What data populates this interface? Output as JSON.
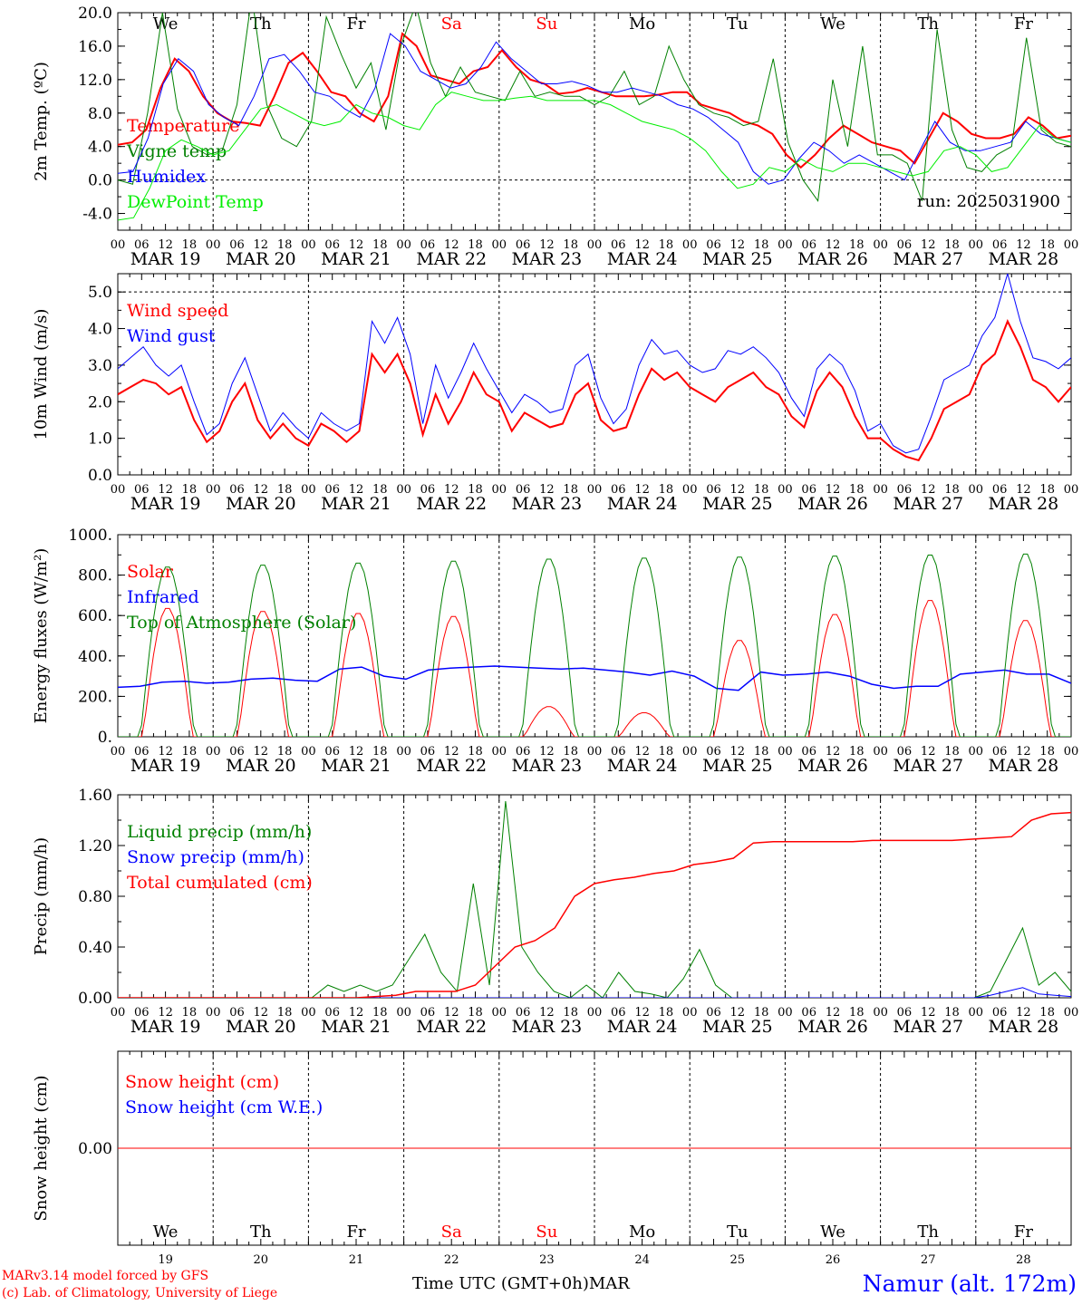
{
  "chart_data": {
    "day_labels": [
      "We",
      "Th",
      "Fr",
      "Sa",
      "Su",
      "Mo",
      "Tu",
      "We",
      "Th",
      "Fr"
    ],
    "weekend_color": "#ff0000",
    "date_labels": [
      "MAR 19",
      "MAR 20",
      "MAR 21",
      "MAR 22",
      "MAR 23",
      "MAR 24",
      "MAR 25",
      "MAR 26",
      "MAR 27",
      "MAR 28"
    ],
    "day_numbers": [
      "19",
      "20",
      "21",
      "22",
      "23",
      "24",
      "25",
      "26",
      "27",
      "28"
    ],
    "hour_labels": [
      "00",
      "06",
      "12",
      "18"
    ],
    "x_start": "2025-03-19 00 UTC",
    "x_end": "2025-03-29 00 UTC",
    "panels": [
      {
        "type": "line",
        "ylabel": "2m Temp. (ºC)",
        "ylim": [
          -6,
          20
        ],
        "ticks": [
          "-4.0",
          "0.0",
          "4.0",
          "8.0",
          "12.0",
          "16.0",
          "20.0"
        ],
        "tick_values": [
          -4,
          0,
          4,
          8,
          12,
          16,
          20
        ],
        "dashed_ref": [
          0
        ],
        "annotation": "run: 2025031900",
        "show_days": true,
        "series": [
          {
            "name": "Temperature",
            "color": "#ff0000",
            "width": 2,
            "values": [
              4.2,
              4.5,
              6,
              11,
              14.5,
              13,
              10,
              8,
              7,
              6.8,
              6.5,
              10,
              14,
              15.2,
              13,
              10.5,
              10,
              8,
              7,
              10,
              17.5,
              16,
              12.5,
              12,
              11.5,
              13,
              13.5,
              15.5,
              13.5,
              12,
              11.5,
              10.3,
              10.5,
              11,
              10.5,
              10,
              10,
              10,
              10.2,
              10.5,
              10.5,
              9,
              8.5,
              8,
              7,
              6.5,
              5.5,
              3,
              1.5,
              3,
              5,
              6.5,
              5.5,
              4.5,
              4,
              3.5,
              2,
              5,
              8,
              7,
              5.5,
              5,
              5,
              5.5,
              7.5,
              6.5,
              5,
              5.3
            ]
          },
          {
            "name": "Vigne temp",
            "color": "#008000",
            "width": 1,
            "values": [
              0,
              -0.5,
              8,
              20,
              8.5,
              4,
              3,
              3.5,
              9,
              22,
              9,
              5,
              4,
              7,
              19.5,
              15,
              11,
              14,
              6,
              16,
              21,
              14,
              10,
              13.5,
              10.5,
              10,
              9.5,
              13,
              10,
              10.5,
              10,
              10,
              9,
              10,
              13,
              9,
              10,
              16,
              12,
              9,
              8,
              7.5,
              6.5,
              7,
              14.5,
              4.5,
              0,
              -2.5,
              12,
              4,
              16,
              3,
              3,
              2,
              -2.5,
              18,
              6,
              1.5,
              1,
              3,
              4,
              17,
              6,
              4.5,
              4
            ]
          },
          {
            "name": "Humidex",
            "color": "#0000ff",
            "width": 1,
            "values": [
              0.8,
              1,
              5,
              11.5,
              14.5,
              13,
              9,
              7.5,
              6.5,
              10,
              14.5,
              15,
              13,
              10.5,
              10,
              8.5,
              7.5,
              11,
              17.5,
              16,
              13,
              12,
              11,
              11.5,
              13.5,
              16.5,
              14.5,
              13,
              11.5,
              11.5,
              11.8,
              11.3,
              10.5,
              10.5,
              11,
              10.5,
              10,
              9,
              8.5,
              7.5,
              6,
              4.5,
              1,
              -0.5,
              0,
              2.5,
              4.5,
              3.5,
              2,
              3,
              2,
              1,
              0,
              3.5,
              7,
              4.5,
              3.5,
              3.5,
              4,
              4.5,
              7,
              5.5,
              5,
              4.5
            ]
          },
          {
            "name": "DewPoint Temp",
            "color": "#00ee00",
            "width": 1,
            "values": [
              -4.8,
              -4.5,
              -1,
              3.5,
              4.8,
              4,
              3,
              3.5,
              6,
              8.5,
              9,
              8,
              7,
              6.5,
              7,
              9,
              8,
              7.5,
              6.5,
              6,
              9,
              10.5,
              10,
              9.5,
              9.5,
              9.8,
              10,
              9.5,
              9.5,
              9.5,
              9.5,
              9,
              8,
              7,
              6.5,
              6,
              5,
              3.5,
              1,
              -1,
              -0.5,
              1.5,
              1,
              2.5,
              1.5,
              1,
              2,
              2,
              1.5,
              1,
              0.5,
              1,
              3.5,
              4,
              3,
              1,
              1.5,
              4,
              6.5,
              5,
              4.5
            ]
          }
        ]
      },
      {
        "type": "line",
        "ylabel": "10m Wind (m/s)",
        "ylim": [
          0,
          5.5
        ],
        "ticks": [
          "0.0",
          "1.0",
          "2.0",
          "3.0",
          "4.0",
          "5.0"
        ],
        "tick_values": [
          0,
          1,
          2,
          3,
          4,
          5
        ],
        "dashed_ref": [
          5
        ],
        "show_days": false,
        "series": [
          {
            "name": "Wind speed",
            "color": "#ff0000",
            "width": 2,
            "values": [
              2.2,
              2.4,
              2.6,
              2.5,
              2.2,
              2.4,
              1.5,
              0.9,
              1.2,
              2,
              2.5,
              1.5,
              1,
              1.4,
              1,
              0.8,
              1.4,
              1.2,
              0.9,
              1.2,
              3.3,
              2.8,
              3.3,
              2.5,
              1.1,
              2.2,
              1.4,
              2,
              2.8,
              2.2,
              2,
              1.2,
              1.7,
              1.5,
              1.3,
              1.4,
              2.2,
              2.5,
              1.5,
              1.2,
              1.3,
              2.2,
              2.9,
              2.6,
              2.8,
              2.4,
              2.2,
              2,
              2.4,
              2.6,
              2.8,
              2.4,
              2.2,
              1.6,
              1.3,
              2.3,
              2.8,
              2.4,
              1.6,
              1,
              1,
              0.7,
              0.5,
              0.4,
              1,
              1.8,
              2,
              2.2,
              3,
              3.3,
              4.2,
              3.5,
              2.6,
              2.4,
              2,
              2.4
            ]
          },
          {
            "name": "Wind gust",
            "color": "#0000ff",
            "width": 1,
            "values": [
              2.9,
              3.2,
              3.5,
              3,
              2.7,
              3,
              2,
              1.1,
              1.4,
              2.5,
              3.2,
              2.2,
              1.2,
              1.7,
              1.3,
              1,
              1.7,
              1.4,
              1.2,
              1.4,
              4.2,
              3.6,
              4.3,
              3.3,
              1.4,
              3,
              2.1,
              2.8,
              3.6,
              2.9,
              2.3,
              1.7,
              2.2,
              2,
              1.7,
              1.8,
              3,
              3.3,
              2.1,
              1.4,
              1.8,
              3,
              3.7,
              3.3,
              3.4,
              3,
              2.8,
              2.9,
              3.4,
              3.3,
              3.5,
              3.2,
              2.8,
              2.1,
              1.6,
              2.9,
              3.3,
              3,
              2.3,
              1.2,
              1.4,
              0.8,
              0.6,
              0.7,
              1.6,
              2.6,
              2.8,
              3,
              3.8,
              4.3,
              5.5,
              4.2,
              3.2,
              3.1,
              2.9,
              3.2
            ]
          }
        ]
      },
      {
        "type": "line",
        "ylabel": "Energy fluxes (W/m²)",
        "ylim": [
          0,
          1000
        ],
        "ticks": [
          "0.",
          "200.",
          "400.",
          "600.",
          "800.",
          "1000."
        ],
        "tick_values": [
          0,
          200,
          400,
          600,
          800,
          1000
        ],
        "dashed_ref": [],
        "show_days": false,
        "series": [
          {
            "name": "Solar",
            "color": "#ff0000",
            "width": 1,
            "peak_hour": 12.5,
            "half_width_h": 6.2,
            "daily_max": [
              640,
              625,
              615,
              600,
              150,
              120,
              480,
              610,
              680,
              580
            ],
            "values": []
          },
          {
            "name": "Infrared",
            "color": "#0000ff",
            "width": 1.5,
            "values": [
              245,
              250,
              270,
              275,
              265,
              270,
              285,
              290,
              280,
              275,
              335,
              345,
              300,
              285,
              330,
              340,
              345,
              350,
              345,
              340,
              335,
              340,
              330,
              320,
              305,
              325,
              300,
              240,
              230,
              320,
              305,
              310,
              320,
              300,
              260,
              240,
              250,
              250,
              310,
              320,
              330,
              310,
              310,
              265
            ]
          },
          {
            "name": "Top of Atmosphere (Solar)",
            "color": "#008000",
            "width": 1,
            "peak_hour": 12.5,
            "half_width_h": 6.8,
            "daily_max": [
              845,
              855,
              865,
              875,
              885,
              890,
              895,
              900,
              905,
              910
            ],
            "values": []
          }
        ]
      },
      {
        "type": "line",
        "ylabel": "Precip (mm/h)",
        "ylim": [
          0,
          1.6
        ],
        "ticks": [
          "0.00",
          "0.40",
          "0.80",
          "1.20",
          "1.60"
        ],
        "tick_values": [
          0,
          0.4,
          0.8,
          1.2,
          1.6
        ],
        "dashed_ref": [],
        "show_days": false,
        "series": [
          {
            "name": "Liquid precip (mm/h)",
            "color": "#008000",
            "width": 1,
            "values": [
              0,
              0,
              0,
              0,
              0,
              0,
              0,
              0,
              0,
              0,
              0,
              0,
              0,
              0.1,
              0.05,
              0.1,
              0.05,
              0.1,
              0.3,
              0.5,
              0.2,
              0.05,
              0.9,
              0.1,
              1.55,
              0.4,
              0.2,
              0.05,
              0,
              0.1,
              0,
              0.2,
              0.05,
              0.03,
              0,
              0.15,
              0.38,
              0.1,
              0,
              0,
              0,
              0,
              0,
              0,
              0,
              0,
              0,
              0,
              0,
              0,
              0,
              0,
              0,
              0,
              0.05,
              0.3,
              0.55,
              0.1,
              0.2,
              0.05
            ]
          },
          {
            "name": "Snow precip (mm/h)",
            "color": "#0000ff",
            "width": 1,
            "values": [
              0,
              0,
              0,
              0,
              0,
              0,
              0,
              0,
              0,
              0,
              0,
              0,
              0,
              0,
              0,
              0,
              0,
              0,
              0,
              0,
              0,
              0,
              0,
              0,
              0,
              0,
              0,
              0,
              0,
              0,
              0,
              0,
              0,
              0,
              0,
              0,
              0,
              0,
              0,
              0,
              0,
              0,
              0,
              0,
              0,
              0,
              0,
              0,
              0,
              0,
              0,
              0,
              0,
              0,
              0.02,
              0.05,
              0.08,
              0.03,
              0.02,
              0.01
            ]
          },
          {
            "name": "Total cumulated (cm)",
            "color": "#ff0000",
            "width": 1.5,
            "values": [
              0,
              0,
              0,
              0,
              0,
              0,
              0,
              0,
              0,
              0,
              0,
              0,
              0,
              0.01,
              0.02,
              0.05,
              0.05,
              0.05,
              0.1,
              0.25,
              0.4,
              0.45,
              0.55,
              0.8,
              0.9,
              0.93,
              0.95,
              0.98,
              1,
              1.05,
              1.07,
              1.1,
              1.22,
              1.23,
              1.23,
              1.23,
              1.23,
              1.23,
              1.24,
              1.24,
              1.24,
              1.24,
              1.24,
              1.25,
              1.26,
              1.27,
              1.4,
              1.45,
              1.46
            ]
          }
        ]
      },
      {
        "type": "line",
        "ylabel": "Snow height (cm)",
        "ylim": [
          -1,
          1
        ],
        "ticks": [
          "0.00"
        ],
        "tick_values": [
          0
        ],
        "dashed_ref": [],
        "show_days": false,
        "series": [
          {
            "name": "Snow height (cm)",
            "color": "#ff0000",
            "width": 1,
            "values": [
              0,
              0
            ]
          },
          {
            "name": "Snow height (cm W.E.)",
            "color": "#0000ff",
            "width": 1,
            "values": []
          }
        ]
      }
    ],
    "bottom_axis_title": "Time UTC (GMT+0h)",
    "bottom_axis_month": "MAR"
  },
  "footer": {
    "credit_line_1": "MARv3.14 model forced by GFS",
    "credit_line_2": "(c) Lab. of Climatology, University of Liege",
    "station": "Namur (alt. 172m)"
  }
}
